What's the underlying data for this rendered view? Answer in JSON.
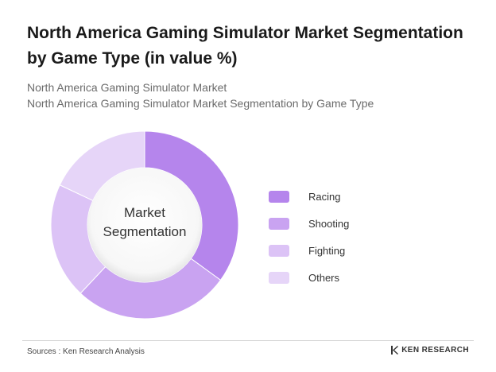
{
  "header": {
    "title": "North America Gaming Simulator Market Segmentation by Game Type (in value %)",
    "subtitle_line1": "North America Gaming Simulator Market",
    "subtitle_line2": "North America Gaming Simulator Market Segmentation by Game Type"
  },
  "chart_data": {
    "type": "pie",
    "title": "North America Gaming Simulator Market Segmentation by Game Type (in value %)",
    "center_label_line1": "Market",
    "center_label_line2": "Segmentation",
    "categories": [
      "Racing",
      "Shooting",
      "Fighting",
      "Others"
    ],
    "values": [
      35,
      27,
      20,
      18
    ],
    "colors": [
      "#b585ec",
      "#c9a3f1",
      "#dcc3f6",
      "#e6d5f8"
    ],
    "legend_position": "right"
  },
  "footer": {
    "source": "Sources : Ken Research Analysis",
    "brand": "KEN RESEARCH"
  }
}
